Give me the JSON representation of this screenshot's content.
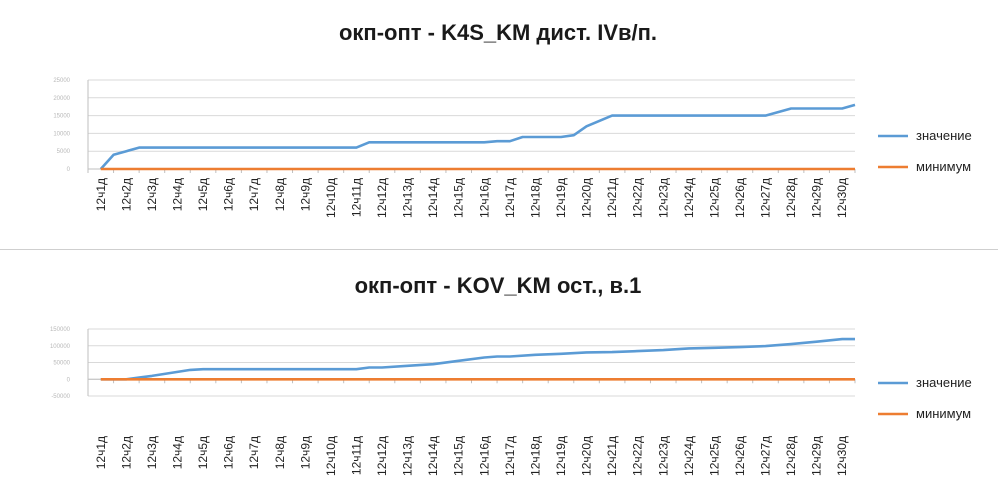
{
  "colors": {
    "value_series": "#5b9bd5",
    "min_series": "#ed7d31",
    "grid": "#d9d9d9",
    "axis": "#bfbfbf"
  },
  "chart_data": [
    {
      "type": "line",
      "title": "окп-опт - K4S_KM дист. IVв/п.",
      "categories": [
        "12ч1д",
        "12ч2д",
        "12ч3д",
        "12ч4д",
        "12ч5д",
        "12ч6д",
        "12ч7д",
        "12ч8д",
        "12ч9д",
        "12ч10д",
        "12ч11д",
        "12ч12д",
        "12ч13д",
        "12ч14д",
        "12ч15д",
        "12ч16д",
        "12ч17д",
        "12ч18д",
        "12ч19д",
        "12ч20д",
        "12ч21д",
        "12ч22д",
        "12ч23д",
        "12ч24д",
        "12ч25д",
        "12ч26д",
        "12ч27д",
        "12ч28д",
        "12ч29д",
        "12ч30д"
      ],
      "y_ticks": [
        "25000",
        "20000",
        "15000",
        "10000",
        "5000",
        "0"
      ],
      "ylim": [
        0,
        25000
      ],
      "grid": true,
      "legend_position": "right",
      "series": [
        {
          "name": "значение",
          "color": "#5b9bd5",
          "x": [
            0,
            0.5,
            1,
            1.5,
            2,
            3,
            4,
            5,
            6,
            7,
            8,
            9,
            10,
            10.5,
            11,
            12,
            13,
            14,
            15,
            15.5,
            16,
            16.5,
            17,
            17.5,
            18,
            18.5,
            19,
            20,
            21,
            22,
            23,
            24,
            25,
            26,
            27,
            28,
            28.5,
            29,
            29.5
          ],
          "values": [
            0,
            4000,
            5000,
            6000,
            6000,
            6000,
            6000,
            6000,
            6000,
            6000,
            6000,
            6000,
            6000,
            7500,
            7500,
            7500,
            7500,
            7500,
            7500,
            7800,
            7800,
            9000,
            9000,
            9000,
            9000,
            9500,
            12000,
            15000,
            15000,
            15000,
            15000,
            15000,
            15000,
            15000,
            17000,
            17000,
            17000,
            17000,
            18000
          ]
        },
        {
          "name": "минимум",
          "color": "#ed7d31",
          "x": [
            0,
            29.5
          ],
          "values": [
            0,
            0
          ]
        }
      ]
    },
    {
      "type": "line",
      "title": "окп-опт - KOV_KM ост., в.1",
      "categories": [
        "12ч1д",
        "12ч2д",
        "12ч3д",
        "12ч4д",
        "12ч5д",
        "12ч6д",
        "12ч7д",
        "12ч8д",
        "12ч9д",
        "12ч10д",
        "12ч11д",
        "12ч12д",
        "12ч13д",
        "12ч14д",
        "12ч15д",
        "12ч16д",
        "12ч17д",
        "12ч18д",
        "12ч19д",
        "12ч20д",
        "12ч21д",
        "12ч22д",
        "12ч23д",
        "12ч24д",
        "12ч25д",
        "12ч26д",
        "12ч27д",
        "12ч28д",
        "12ч29д",
        "12ч30д"
      ],
      "y_ticks": [
        "150000",
        "100000",
        "50000",
        "0",
        "-50000"
      ],
      "ylim": [
        -50000,
        150000
      ],
      "grid": true,
      "legend_position": "right",
      "series": [
        {
          "name": "значение",
          "color": "#5b9bd5",
          "x": [
            0,
            0.5,
            1,
            1.5,
            2,
            3,
            3.5,
            4,
            5,
            6,
            7,
            8,
            9,
            10,
            10.5,
            11,
            12,
            13,
            14,
            15,
            15.5,
            16,
            17,
            18,
            19,
            20,
            21,
            22,
            23,
            24,
            25,
            26,
            27,
            28,
            29,
            29.5
          ],
          "values": [
            0,
            0,
            0,
            5000,
            10000,
            22000,
            28000,
            30000,
            30000,
            30000,
            30000,
            30000,
            30000,
            30000,
            35000,
            35000,
            40000,
            45000,
            55000,
            65000,
            68000,
            68000,
            73000,
            76000,
            80000,
            81000,
            84000,
            87000,
            92000,
            94000,
            96000,
            99000,
            105000,
            112000,
            120000,
            120000
          ]
        },
        {
          "name": "минимум",
          "color": "#ed7d31",
          "x": [
            0,
            29.5
          ],
          "values": [
            0,
            0
          ]
        }
      ]
    }
  ]
}
